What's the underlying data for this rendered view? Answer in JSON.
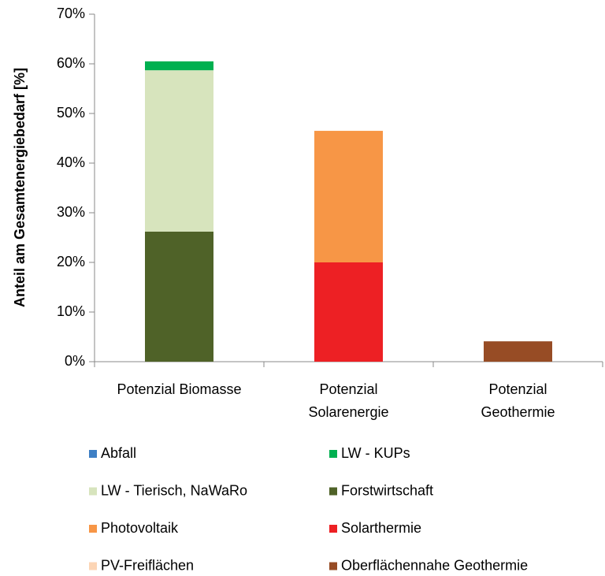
{
  "chart_data": {
    "type": "stacked-bar",
    "y_label": "Anteil am Gesamtenergiebedarf [%]",
    "categories": [
      "Potenzial Biomasse",
      "Potenzial\nSolarenergie",
      "Potenzial\nGeothermie"
    ],
    "series": [
      {
        "name": "Abfall",
        "color": "#3e7fc4",
        "values": [
          0,
          null,
          null
        ]
      },
      {
        "name": "LW - KUPs",
        "color": "#00b050",
        "values": [
          1.8,
          null,
          null
        ]
      },
      {
        "name": "LW - Tierisch, NaWaRo",
        "color": "#d7e4bd",
        "values": [
          32.5,
          null,
          null
        ]
      },
      {
        "name": "Forstwirtschaft",
        "color": "#4f6228",
        "values": [
          26.2,
          null,
          null
        ]
      },
      {
        "name": "Photovoltaik",
        "color": "#f79646",
        "values": [
          null,
          26.5,
          null
        ]
      },
      {
        "name": "Solarthermie",
        "color": "#ed2024",
        "values": [
          null,
          20,
          null
        ]
      },
      {
        "name": "PV-Freiflächen",
        "color": "#fcd5b5",
        "values": [
          null,
          0,
          null
        ]
      },
      {
        "name": "Oberflächennahe Geothermie",
        "color": "#974c25",
        "values": [
          null,
          null,
          4.1
        ]
      }
    ],
    "ylim": [
      0,
      70
    ],
    "yticks": [
      {
        "value": 0,
        "label": "0%"
      },
      {
        "value": 10,
        "label": "10%"
      },
      {
        "value": 20,
        "label": "20%"
      },
      {
        "value": 30,
        "label": "30%"
      },
      {
        "value": 40,
        "label": "40%"
      },
      {
        "value": 50,
        "label": "50%"
      },
      {
        "value": 60,
        "label": "60%"
      },
      {
        "value": 70,
        "label": "70%"
      }
    ],
    "legend": "bottom"
  }
}
